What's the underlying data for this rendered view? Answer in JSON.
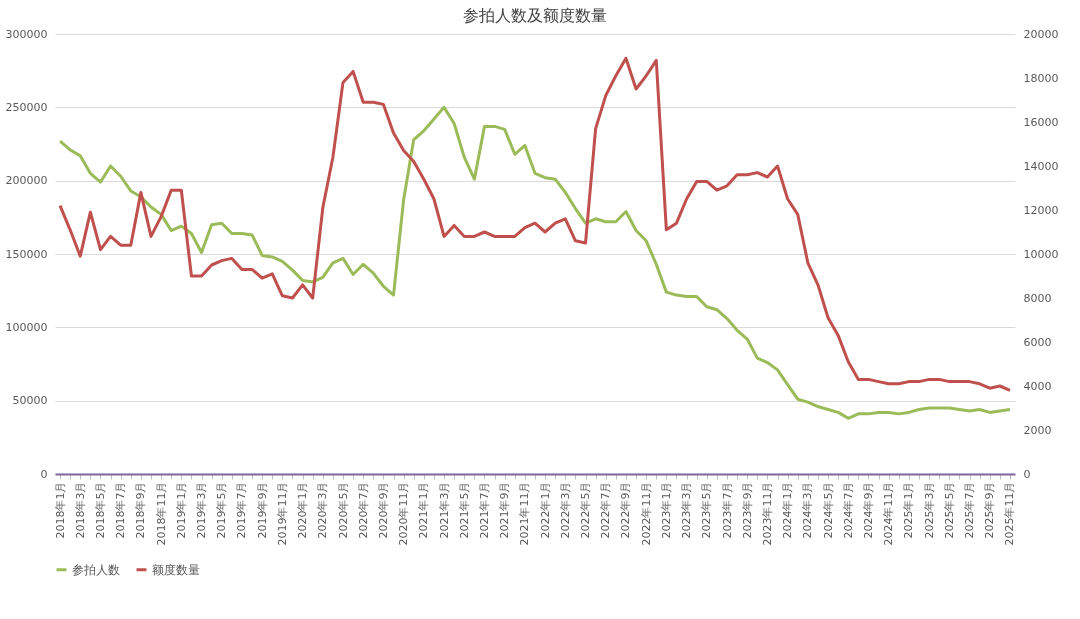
{
  "chart_data": {
    "type": "line",
    "title": "参拍人数及额度数量",
    "categories": [
      "2018年1月",
      null,
      "2018年3月",
      null,
      "2018年5月",
      null,
      "2018年7月",
      null,
      "2018年9月",
      null,
      "2018年11月",
      null,
      "2019年1月",
      null,
      "2019年3月",
      null,
      "2019年5月",
      null,
      "2019年7月",
      null,
      "2019年9月",
      null,
      "2019年11月",
      null,
      "2020年1月",
      null,
      "2020年3月",
      null,
      "2020年5月",
      null,
      "2020年7月",
      null,
      "2020年9月",
      null,
      "2020年11月",
      null,
      "2021年1月",
      null,
      "2021年3月",
      null,
      "2021年5月",
      null,
      "2021年7月",
      null,
      "2021年9月",
      null,
      "2021年11月",
      null,
      "2022年1月",
      null,
      "2022年3月",
      null,
      "2022年5月",
      null,
      "2022年7月",
      null,
      "2022年9月",
      null,
      "2022年11月",
      null,
      "2023年1月",
      null,
      "2023年3月",
      null,
      "2023年5月",
      null,
      "2023年7月",
      null,
      "2023年9月",
      null,
      "2023年11月",
      null,
      "2024年1月",
      null,
      "2024年3月",
      null,
      "2024年5月",
      null,
      "2024年7月",
      null,
      "2024年9月",
      null,
      "2024年11月",
      null,
      "2025年1月",
      null,
      "2025年3月",
      null,
      "2025年5月",
      null,
      "2025年7月",
      null,
      "2025年9月",
      null,
      "2025年11月"
    ],
    "series": [
      {
        "name": "参拍人数",
        "color": "#9bbb59",
        "values": [
          227000,
          221000,
          217000,
          205000,
          199000,
          210000,
          203000,
          193000,
          189000,
          182000,
          177000,
          166000,
          169000,
          164000,
          151000,
          170000,
          171000,
          164000,
          164000,
          163000,
          149000,
          148000,
          145000,
          139000,
          132000,
          131000,
          134000,
          144000,
          147000,
          136000,
          143000,
          137000,
          128000,
          122000,
          187000,
          228000,
          234000,
          242000,
          250000,
          239000,
          216000,
          201000,
          237000,
          237000,
          235000,
          218000,
          224000,
          205000,
          202000,
          201000,
          192000,
          181000,
          171000,
          174000,
          172000,
          172000,
          179000,
          166000,
          159000,
          143000,
          124000,
          122000,
          121000,
          121000,
          114000,
          112000,
          106000,
          98000,
          92000,
          79000,
          76000,
          71000,
          61000,
          51000,
          49000,
          46000,
          44000,
          42000,
          38000,
          41000,
          41000,
          42000,
          42000,
          41000,
          42000,
          44000,
          45000,
          45000,
          45000,
          44000,
          43000,
          44000,
          42000,
          43000,
          44000
        ]
      },
      {
        "name": "额度数量",
        "color": "#c0504d",
        "axis": "y2",
        "values": [
          12200,
          11100,
          9900,
          11900,
          10200,
          10800,
          10400,
          10400,
          12800,
          10800,
          11700,
          12900,
          12900,
          9000,
          9000,
          9500,
          9700,
          9800,
          9300,
          9300,
          8900,
          9100,
          8100,
          8000,
          8600,
          8000,
          12100,
          14400,
          17800,
          18300,
          16900,
          16900,
          16800,
          15500,
          14700,
          14200,
          13400,
          12500,
          10800,
          11300,
          10800,
          10800,
          11000,
          10800,
          10800,
          10800,
          11200,
          11400,
          11000,
          11400,
          11600,
          10600,
          10500,
          15700,
          17200,
          18100,
          18900,
          17500,
          18100,
          18800,
          11100,
          11400,
          12500,
          13300,
          13300,
          12900,
          13100,
          13600,
          13600,
          13700,
          13500,
          14000,
          12500,
          11800,
          9600,
          8600,
          7100,
          6300,
          5100,
          4300,
          4300,
          4200,
          4100,
          4100,
          4200,
          4200,
          4300,
          4300,
          4200,
          4200,
          4200,
          4100,
          3900,
          4000,
          3800
        ]
      }
    ],
    "ylim": [
      0,
      300000
    ],
    "yticks": [
      0,
      50000,
      100000,
      150000,
      200000,
      250000,
      300000
    ],
    "y2lim": [
      0,
      20000
    ],
    "y2ticks": [
      0,
      2000,
      4000,
      6000,
      8000,
      10000,
      12000,
      14000,
      16000,
      18000,
      20000
    ],
    "grid": "y",
    "legend": "bottom",
    "marker": "none",
    "line_style": "solid"
  }
}
